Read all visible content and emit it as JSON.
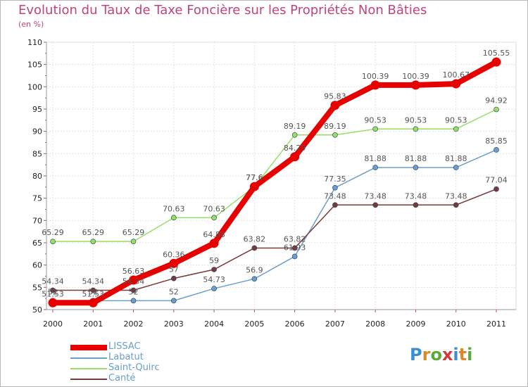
{
  "title": "Evolution du Taux de Taxe Foncière sur les Propriétés Non Bâties",
  "unit_label": "(en %)",
  "logo": {
    "letters": [
      "P",
      "r",
      "o",
      "x",
      "i",
      "t",
      "i"
    ],
    "colors": [
      "#3b8fd1",
      "#d9892b",
      "#5aaa3a",
      "#d23a3a",
      "#3b8fd1",
      "#d9892b",
      "#5aaa3a"
    ]
  },
  "chart_data": {
    "type": "line",
    "x": [
      "2000",
      "2001",
      "2002",
      "2003",
      "2004",
      "2005",
      "2006",
      "2007",
      "2008",
      "2009",
      "2010",
      "2011"
    ],
    "ylim": [
      50,
      110
    ],
    "yticks": [
      "50",
      "55",
      "60",
      "65",
      "70",
      "75",
      "80",
      "85",
      "90",
      "95",
      "100",
      "105",
      "110"
    ],
    "grid": true,
    "legend_position": "bottom-left",
    "series": [
      {
        "name": "LISSAC",
        "color": "#e60000",
        "values": [
          51.53,
          51.53,
          56.63,
          60.36,
          64.88,
          77.6,
          84.29,
          95.83,
          100.39,
          100.39,
          100.67,
          105.55
        ],
        "labels": [
          "51.53",
          "51.53",
          "56.63",
          "60.36",
          "64.88",
          "77.6",
          "84.29",
          "95.83",
          "100.39",
          "100.39",
          "100.67",
          "105.55"
        ]
      },
      {
        "name": "Labatut",
        "color": "#6d9dc9",
        "values": [
          52,
          52,
          52,
          52,
          54.73,
          56.9,
          61.93,
          77.35,
          81.88,
          81.88,
          81.88,
          85.85
        ],
        "labels": [
          "52",
          "52",
          "52",
          "52",
          "54.73",
          "56.9",
          "61.93",
          "77.35",
          "81.88",
          "81.88",
          "81.88",
          "85.85"
        ]
      },
      {
        "name": "Saint-Quirc",
        "color": "#99dd66",
        "values": [
          65.29,
          65.29,
          65.29,
          70.63,
          70.63,
          77.6,
          89.19,
          89.19,
          90.53,
          90.53,
          90.53,
          94.92
        ],
        "labels": [
          "65.29",
          "65.29",
          "65.29",
          "70.63",
          "70.63",
          "77.6",
          "89.19",
          "89.19",
          "90.53",
          "90.53",
          "90.53",
          "94.92"
        ]
      },
      {
        "name": "Canté",
        "color": "#7a3a3a",
        "values": [
          54.34,
          54.34,
          54.34,
          57,
          59,
          63.82,
          63.82,
          73.48,
          73.48,
          73.48,
          73.48,
          77.04
        ],
        "labels": [
          "54.34",
          "54.34",
          "54.34",
          "57",
          "59",
          "63.82",
          "63.82",
          "73.48",
          "73.48",
          "73.48",
          "73.48",
          "77.04"
        ]
      }
    ]
  }
}
